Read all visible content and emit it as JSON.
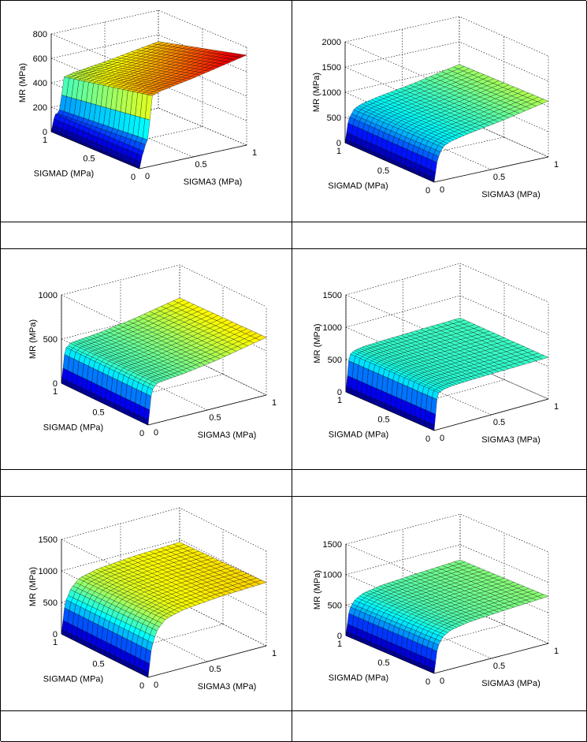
{
  "chart_data": [
    {
      "type": "surface",
      "zlabel": "MR (MPa)",
      "ylabel": "SIGMAD (MPa)",
      "xlabel": "SIGMA3 (MPa)",
      "zlim": [
        0,
        800
      ],
      "zticks": [
        0,
        200,
        400,
        600,
        800
      ],
      "xticks": [
        0,
        0.5,
        1
      ],
      "yticks": [
        0,
        0.5,
        1
      ],
      "grid": true,
      "profile": {
        "s3": [
          0,
          0.03,
          0.08,
          0.12,
          0.2,
          0.5,
          1.0
        ],
        "mr": [
          0,
          120,
          200,
          500,
          520,
          560,
          640
        ]
      },
      "sigmad_effect": -0.3
    },
    {
      "type": "surface",
      "zlabel": "MR (MPa)",
      "ylabel": "SIGMAD (MPa)",
      "xlabel": "SIGMA3 (MPa)",
      "zlim": [
        0,
        2000
      ],
      "zticks": [
        0,
        500,
        1000,
        1500,
        2000
      ],
      "xticks": [
        0,
        0.5,
        1
      ],
      "yticks": [
        0,
        0.5,
        1
      ],
      "grid": true,
      "profile": {
        "s3": [
          0,
          0.03,
          0.08,
          0.15,
          0.3,
          0.6,
          1.0
        ],
        "mr": [
          0,
          450,
          650,
          720,
          790,
          900,
          1080
        ]
      },
      "sigmad_effect": -0.05
    },
    {
      "type": "surface",
      "zlabel": "MR (MPa)",
      "ylabel": "SIGMAD (MPa)",
      "xlabel": "SIGMA3 (MPa)",
      "zlim": [
        0,
        1000
      ],
      "zticks": [
        0,
        500,
        1000
      ],
      "xticks": [
        0,
        0.5,
        1
      ],
      "yticks": [
        0,
        0.5,
        1
      ],
      "grid": true,
      "profile": {
        "s3": [
          0,
          0.03,
          0.08,
          0.15,
          0.3,
          0.6,
          1.0
        ],
        "mr": [
          0,
          380,
          440,
          450,
          470,
          530,
          640
        ]
      },
      "sigmad_effect": -0.04
    },
    {
      "type": "surface",
      "zlabel": "MR (MPa)",
      "ylabel": "SIGMAD (MPa)",
      "xlabel": "SIGMA3 (MPa)",
      "zlim": [
        0,
        1500
      ],
      "zticks": [
        0,
        500,
        1000,
        1500
      ],
      "xticks": [
        0,
        0.5,
        1
      ],
      "yticks": [
        0,
        0.5,
        1
      ],
      "grid": true,
      "profile": {
        "s3": [
          0,
          0.03,
          0.08,
          0.15,
          0.3,
          0.6,
          1.0
        ],
        "mr": [
          0,
          560,
          600,
          620,
          630,
          640,
          650
        ]
      },
      "sigmad_effect": 0.02
    },
    {
      "type": "surface",
      "zlabel": "MR (MPa)",
      "ylabel": "SIGMAD (MPa)",
      "xlabel": "SIGMA3 (MPa)",
      "zlim": [
        0,
        1500
      ],
      "zticks": [
        0,
        500,
        1000,
        1500
      ],
      "xticks": [
        0,
        0.5,
        1
      ],
      "yticks": [
        0,
        0.5,
        1
      ],
      "grid": true,
      "profile": {
        "s3": [
          0,
          0.03,
          0.08,
          0.15,
          0.3,
          0.6,
          1.0
        ],
        "mr": [
          0,
          480,
          700,
          830,
          900,
          950,
          980
        ]
      },
      "sigmad_effect": -0.05
    },
    {
      "type": "surface",
      "zlabel": "MR (MPa)",
      "ylabel": "SIGMAD (MPa)",
      "xlabel": "SIGMA3 (MPa)",
      "zlim": [
        0,
        1500
      ],
      "zticks": [
        0,
        500,
        1000,
        1500
      ],
      "xticks": [
        0,
        0.5,
        1
      ],
      "yticks": [
        0,
        0.5,
        1
      ],
      "grid": true,
      "profile": {
        "s3": [
          0,
          0.03,
          0.08,
          0.15,
          0.3,
          0.6,
          1.0
        ],
        "mr": [
          0,
          420,
          560,
          630,
          680,
          720,
          760
        ]
      },
      "sigmad_effect": -0.03
    }
  ],
  "captions": [
    "",
    "",
    "",
    "",
    "",
    ""
  ]
}
